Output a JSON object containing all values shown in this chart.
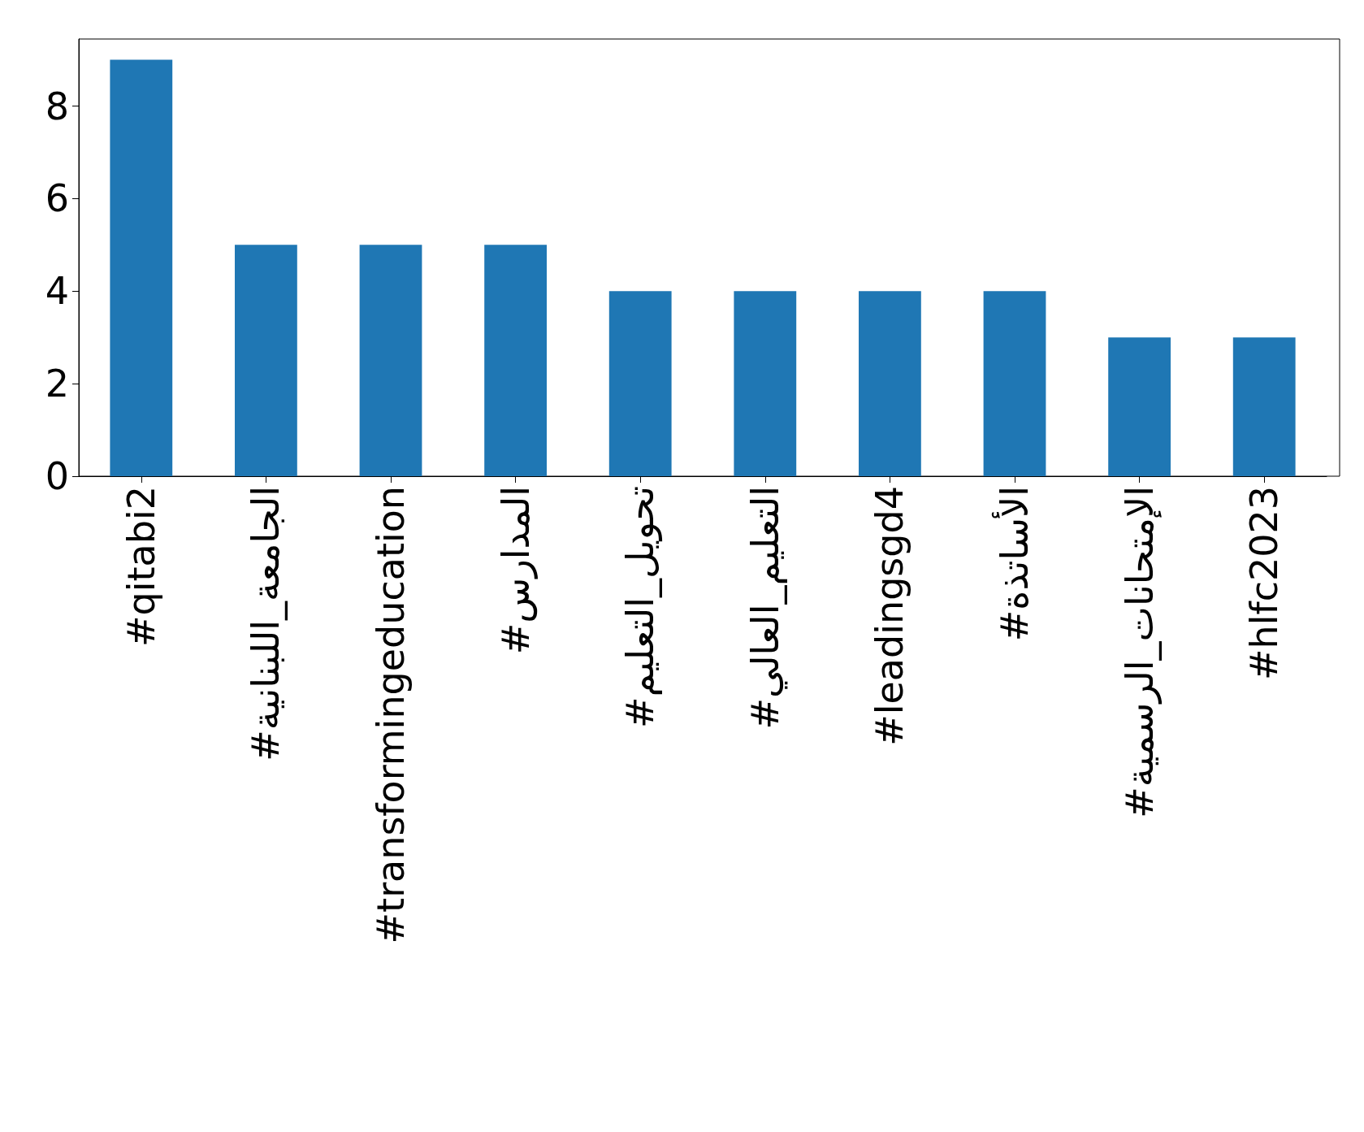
{
  "chart_data": {
    "type": "bar",
    "categories": [
      "#qitabi2",
      "#الجامعة_اللبنانية",
      "#transformingeducation",
      "#المدارس",
      "#تحويل_التعليم",
      "#التعليم_العالي",
      "#leadingsgd4",
      "#الأساتذة",
      "#الإمتحانات_الرسمية",
      "#hlfc2023"
    ],
    "values": [
      9,
      5,
      5,
      5,
      4,
      4,
      4,
      4,
      3,
      3
    ],
    "color": "#1f77b4",
    "ylim": [
      0,
      9.45
    ],
    "yticks": [
      0,
      2,
      4,
      6,
      8
    ],
    "grid": false
  }
}
